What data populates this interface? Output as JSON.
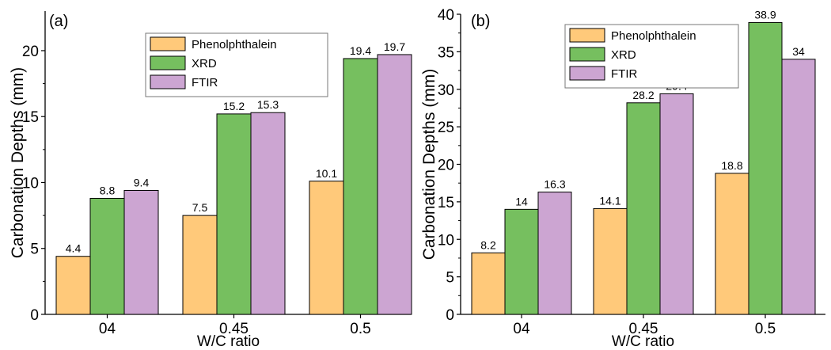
{
  "chart_data": [
    {
      "type": "bar",
      "panel_label": "(a)",
      "categories": [
        "04",
        "0.45",
        "0.5"
      ],
      "series": [
        {
          "name": "Phenolphthalein",
          "values": [
            4.4,
            7.5,
            10.1
          ],
          "color": "#FFC97A"
        },
        {
          "name": "XRD",
          "values": [
            8.8,
            15.2,
            19.4
          ],
          "color": "#76BF5F"
        },
        {
          "name": "FTIR",
          "values": [
            9.4,
            15.3,
            19.7
          ],
          "color": "#CCA5D2"
        }
      ],
      "data_labels": [
        [
          "4.4",
          "7.5",
          "10.1"
        ],
        [
          "8.8",
          "15.2",
          "19.4"
        ],
        [
          "9.4",
          "15.3",
          "19.7"
        ]
      ],
      "xlabel": "W/C ratio",
      "ylabel": "Carbonation Depths (mm)",
      "ylim": [
        0,
        23
      ],
      "yticks": [
        0,
        5,
        10,
        15,
        20
      ],
      "ytick_labels": [
        "0",
        "5",
        "10",
        "15",
        "20"
      ],
      "grid": false,
      "legend_position": "top-right"
    },
    {
      "type": "bar",
      "panel_label": "(b)",
      "categories": [
        "04",
        "0.45",
        "0.5"
      ],
      "series": [
        {
          "name": "Phenolphthalein",
          "values": [
            8.2,
            14.1,
            18.8
          ],
          "color": "#FFC97A"
        },
        {
          "name": "XRD",
          "values": [
            14,
            28.2,
            38.9
          ],
          "color": "#76BF5F"
        },
        {
          "name": "FTIR",
          "values": [
            16.3,
            29.4,
            34
          ],
          "color": "#CCA5D2"
        }
      ],
      "data_labels": [
        [
          "8.2",
          "14.1",
          "18.8"
        ],
        [
          "14",
          "28.2",
          "38.9"
        ],
        [
          "16.3",
          "29.4",
          "34"
        ]
      ],
      "xlabel": "W/C ratio",
      "ylabel": "Carbonation Depths (mm)",
      "ylim": [
        0,
        40
      ],
      "yticks": [
        0,
        5,
        10,
        15,
        20,
        25,
        30,
        35,
        40
      ],
      "ytick_labels": [
        "0",
        "5",
        "10",
        "15",
        "20",
        "25",
        "30",
        "35",
        "40"
      ],
      "grid": false,
      "legend_position": "top-right"
    }
  ]
}
